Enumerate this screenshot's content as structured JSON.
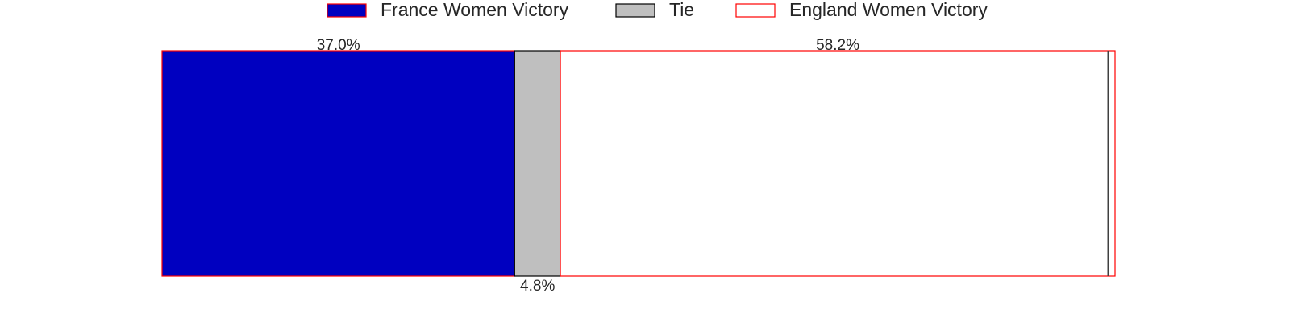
{
  "chart_data": {
    "type": "bar",
    "orientation": "horizontal-stacked",
    "series": [
      {
        "name": "France Women Victory",
        "value": 37.0,
        "label": "37.0%",
        "fill": "#0000c0",
        "stroke": "#ff0000",
        "label_position": "top"
      },
      {
        "name": "Tie",
        "value": 4.8,
        "label": "4.8%",
        "fill": "#bfbfbf",
        "stroke": "#000000",
        "label_position": "bottom"
      },
      {
        "name": "England Women Victory",
        "value": 58.2,
        "label": "58.2%",
        "fill": "#ffffff",
        "stroke": "#ff0000",
        "label_position": "top"
      }
    ],
    "xlim": [
      0,
      100
    ],
    "legend_placement": "top-center",
    "grid": false
  }
}
